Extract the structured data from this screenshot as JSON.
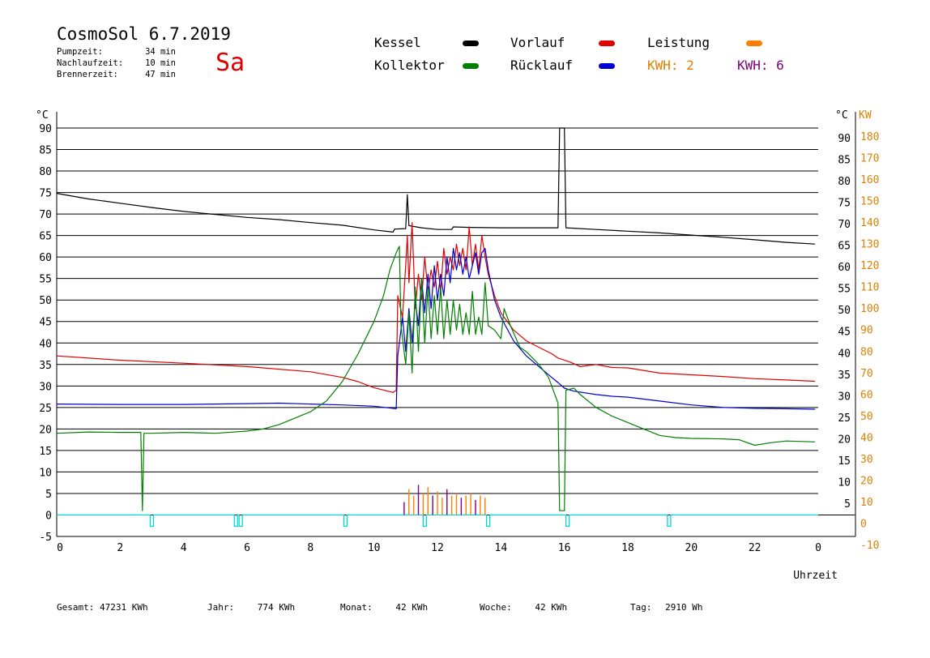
{
  "header": {
    "title": "CosmoSol 6.7.2019",
    "day": "Sa",
    "stats": [
      {
        "label": "Pumpzeit:",
        "value": "34 min"
      },
      {
        "label": "Nachlaufzeit:",
        "value": "10 min"
      },
      {
        "label": "Brennerzeit:",
        "value": "47 min"
      }
    ]
  },
  "legend": {
    "kessel": {
      "label": "Kessel",
      "color": "#000000"
    },
    "kollektor": {
      "label": "Kollektor",
      "color": "#008000"
    },
    "vorlauf": {
      "label": "Vorlauf",
      "color": "#e00000"
    },
    "ruecklauf": {
      "label": "Rücklauf",
      "color": "#0000d0"
    },
    "leistung": {
      "label": "Leistung",
      "color": "#ff8000"
    },
    "kwh_orange": {
      "label": "KWH: 2",
      "color": "#e08000"
    },
    "kwh_purple": {
      "label": "KWH: 6",
      "color": "#800080"
    }
  },
  "footer": {
    "gesamt": {
      "label": "Gesamt:",
      "value": "47231 KWh"
    },
    "jahr": {
      "label": "Jahr:",
      "value": "774 KWh"
    },
    "monat": {
      "label": "Monat:",
      "value": "42 KWh"
    },
    "woche": {
      "label": "Woche:",
      "value": "42 KWh"
    },
    "tag": {
      "label": "Tag:",
      "value": "2910 Wh"
    }
  },
  "chart_data": {
    "type": "line",
    "xlabel": "Uhrzeit",
    "ylabel_left": "°C",
    "ylabel_right_temp": "°C",
    "ylabel_right_power": "KW",
    "xlim": [
      0,
      24
    ],
    "ylim": [
      -5,
      90
    ],
    "y2lim": [
      -10,
      180
    ],
    "x_ticks": [
      "0",
      "2",
      "4",
      "6",
      "8",
      "10",
      "12",
      "14",
      "16",
      "18",
      "20",
      "22",
      "0"
    ],
    "y_ticks_left": [
      90,
      85,
      80,
      75,
      70,
      65,
      60,
      55,
      50,
      45,
      40,
      35,
      30,
      25,
      20,
      15,
      10,
      5,
      0,
      -5
    ],
    "y_ticks_right": [
      90,
      85,
      80,
      75,
      70,
      65,
      60,
      55,
      50,
      45,
      40,
      35,
      30,
      25,
      20,
      15,
      10,
      5
    ],
    "y2_ticks": [
      180,
      170,
      160,
      150,
      140,
      130,
      120,
      110,
      100,
      90,
      80,
      70,
      60,
      50,
      40,
      30,
      20,
      10,
      0,
      -10
    ],
    "grid": true,
    "series": [
      {
        "name": "Kessel",
        "color": "#000000",
        "points": [
          [
            0,
            74.8
          ],
          [
            1,
            73.5
          ],
          [
            2,
            72.5
          ],
          [
            3,
            71.5
          ],
          [
            4,
            70.6
          ],
          [
            5,
            69.9
          ],
          [
            6,
            69.2
          ],
          [
            7,
            68.7
          ],
          [
            8,
            68.0
          ],
          [
            9,
            67.4
          ],
          [
            10,
            66.3
          ],
          [
            10.6,
            65.8
          ],
          [
            10.65,
            66.5
          ],
          [
            11.0,
            66.6
          ],
          [
            11.05,
            74.5
          ],
          [
            11.1,
            67.3
          ],
          [
            11.5,
            66.8
          ],
          [
            12.0,
            66.4
          ],
          [
            12.45,
            66.4
          ],
          [
            12.5,
            67.0
          ],
          [
            13.0,
            66.9
          ],
          [
            14.0,
            66.8
          ],
          [
            15.0,
            66.8
          ],
          [
            15.8,
            66.8
          ],
          [
            15.85,
            90.0
          ],
          [
            16.0,
            90.0
          ],
          [
            16.05,
            66.8
          ],
          [
            17,
            66.4
          ],
          [
            18,
            66.0
          ],
          [
            19,
            65.6
          ],
          [
            20,
            65.1
          ],
          [
            21,
            64.6
          ],
          [
            22,
            64.0
          ],
          [
            23,
            63.4
          ],
          [
            23.9,
            63.0
          ]
        ]
      },
      {
        "name": "Vorlauf",
        "color": "#e00000",
        "points": [
          [
            0,
            37.0
          ],
          [
            2,
            36.0
          ],
          [
            4,
            35.3
          ],
          [
            6,
            34.5
          ],
          [
            8,
            33.3
          ],
          [
            9,
            32.0
          ],
          [
            9.5,
            31.0
          ],
          [
            10,
            29.6
          ],
          [
            10.6,
            28.5
          ],
          [
            10.7,
            29.0
          ],
          [
            10.75,
            51.0
          ],
          [
            10.9,
            46.0
          ],
          [
            11.0,
            58.0
          ],
          [
            11.05,
            65.0
          ],
          [
            11.1,
            54.0
          ],
          [
            11.2,
            68.0
          ],
          [
            11.3,
            48.0
          ],
          [
            11.4,
            56.0
          ],
          [
            11.5,
            50.0
          ],
          [
            11.6,
            60.0
          ],
          [
            11.7,
            52.0
          ],
          [
            11.8,
            57.0
          ],
          [
            11.9,
            53.0
          ],
          [
            12.0,
            59.0
          ],
          [
            12.1,
            52.0
          ],
          [
            12.2,
            62.0
          ],
          [
            12.3,
            56.0
          ],
          [
            12.4,
            60.0
          ],
          [
            12.5,
            57.0
          ],
          [
            12.6,
            63.0
          ],
          [
            12.7,
            58.0
          ],
          [
            12.8,
            62.0
          ],
          [
            12.9,
            57.0
          ],
          [
            13.0,
            67.0
          ],
          [
            13.1,
            58.0
          ],
          [
            13.2,
            63.0
          ],
          [
            13.3,
            57.0
          ],
          [
            13.4,
            65.0
          ],
          [
            13.5,
            60.0
          ],
          [
            13.6,
            56.0
          ],
          [
            13.8,
            51.0
          ],
          [
            14.0,
            47.0
          ],
          [
            14.4,
            43.0
          ],
          [
            14.8,
            40.5
          ],
          [
            15.2,
            39.0
          ],
          [
            15.6,
            37.5
          ],
          [
            15.8,
            36.5
          ],
          [
            16.2,
            35.5
          ],
          [
            16.5,
            34.5
          ],
          [
            17,
            35.0
          ],
          [
            17.5,
            34.3
          ],
          [
            18,
            34.2
          ],
          [
            19,
            33.0
          ],
          [
            20,
            32.6
          ],
          [
            21,
            32.2
          ],
          [
            22,
            31.7
          ],
          [
            23,
            31.4
          ],
          [
            23.9,
            31.1
          ]
        ]
      },
      {
        "name": "Rücklauf",
        "color": "#0000d0",
        "points": [
          [
            0,
            25.8
          ],
          [
            2,
            25.7
          ],
          [
            4,
            25.7
          ],
          [
            6,
            25.9
          ],
          [
            7,
            26.0
          ],
          [
            8,
            25.8
          ],
          [
            9,
            25.6
          ],
          [
            10,
            25.3
          ],
          [
            10.7,
            24.7
          ],
          [
            10.75,
            37.0
          ],
          [
            10.9,
            46.0
          ],
          [
            11.0,
            38.0
          ],
          [
            11.1,
            48.0
          ],
          [
            11.2,
            40.0
          ],
          [
            11.3,
            50.0
          ],
          [
            11.4,
            44.0
          ],
          [
            11.5,
            55.0
          ],
          [
            11.6,
            47.0
          ],
          [
            11.7,
            56.0
          ],
          [
            11.8,
            48.0
          ],
          [
            11.9,
            58.0
          ],
          [
            12.0,
            50.0
          ],
          [
            12.1,
            56.0
          ],
          [
            12.2,
            51.0
          ],
          [
            12.3,
            60.0
          ],
          [
            12.4,
            54.0
          ],
          [
            12.5,
            62.0
          ],
          [
            12.6,
            57.0
          ],
          [
            12.7,
            61.0
          ],
          [
            12.8,
            56.0
          ],
          [
            12.9,
            60.0
          ],
          [
            13.0,
            55.0
          ],
          [
            13.1,
            58.0
          ],
          [
            13.2,
            61.0
          ],
          [
            13.3,
            56.0
          ],
          [
            13.4,
            61.0
          ],
          [
            13.5,
            62.0
          ],
          [
            13.6,
            57.0
          ],
          [
            13.8,
            50.0
          ],
          [
            14.0,
            46.0
          ],
          [
            14.4,
            40.5
          ],
          [
            14.8,
            37.0
          ],
          [
            15.2,
            34.5
          ],
          [
            15.6,
            32.0
          ],
          [
            15.8,
            30.8
          ],
          [
            16.0,
            29.5
          ],
          [
            16.3,
            28.8
          ],
          [
            17,
            28.0
          ],
          [
            17.5,
            27.6
          ],
          [
            18,
            27.4
          ],
          [
            19,
            26.5
          ],
          [
            20,
            25.6
          ],
          [
            21,
            25.0
          ],
          [
            22,
            24.8
          ],
          [
            23,
            24.7
          ],
          [
            23.9,
            24.6
          ]
        ]
      },
      {
        "name": "Kollektor",
        "color": "#008000",
        "points": [
          [
            0,
            19.0
          ],
          [
            1,
            19.3
          ],
          [
            2,
            19.2
          ],
          [
            2.65,
            19.2
          ],
          [
            2.7,
            1.0
          ],
          [
            2.75,
            19.0
          ],
          [
            3,
            19.0
          ],
          [
            4,
            19.2
          ],
          [
            5,
            19.0
          ],
          [
            6,
            19.5
          ],
          [
            6.5,
            20.0
          ],
          [
            7,
            21.0
          ],
          [
            7.5,
            22.5
          ],
          [
            8,
            24.0
          ],
          [
            8.5,
            26.5
          ],
          [
            9,
            31.0
          ],
          [
            9.5,
            37.5
          ],
          [
            10,
            45.0
          ],
          [
            10.3,
            51.0
          ],
          [
            10.5,
            57.0
          ],
          [
            10.7,
            61.0
          ],
          [
            10.8,
            62.5
          ],
          [
            10.85,
            44.0
          ],
          [
            11.0,
            35.0
          ],
          [
            11.1,
            47.0
          ],
          [
            11.2,
            33.0
          ],
          [
            11.3,
            53.0
          ],
          [
            11.4,
            38.0
          ],
          [
            11.5,
            55.0
          ],
          [
            11.6,
            40.0
          ],
          [
            11.7,
            53.0
          ],
          [
            11.8,
            41.0
          ],
          [
            11.9,
            51.0
          ],
          [
            12.0,
            42.0
          ],
          [
            12.1,
            53.0
          ],
          [
            12.2,
            41.0
          ],
          [
            12.3,
            50.0
          ],
          [
            12.4,
            42.0
          ],
          [
            12.5,
            50.0
          ],
          [
            12.6,
            43.0
          ],
          [
            12.7,
            49.0
          ],
          [
            12.8,
            42.0
          ],
          [
            12.9,
            47.0
          ],
          [
            13.0,
            42.0
          ],
          [
            13.1,
            52.0
          ],
          [
            13.2,
            42.0
          ],
          [
            13.3,
            46.0
          ],
          [
            13.4,
            42.0
          ],
          [
            13.5,
            54.0
          ],
          [
            13.6,
            44.0
          ],
          [
            13.8,
            43.0
          ],
          [
            14.0,
            41.0
          ],
          [
            14.1,
            48.0
          ],
          [
            14.3,
            44.0
          ],
          [
            14.6,
            39.0
          ],
          [
            14.8,
            38.0
          ],
          [
            15.2,
            35.0
          ],
          [
            15.5,
            32.0
          ],
          [
            15.8,
            26.0
          ],
          [
            15.85,
            1.0
          ],
          [
            16.0,
            1.0
          ],
          [
            16.05,
            29.0
          ],
          [
            16.3,
            29.5
          ],
          [
            16.5,
            28.0
          ],
          [
            17,
            25.0
          ],
          [
            17.5,
            23.0
          ],
          [
            18,
            21.5
          ],
          [
            18.5,
            20.0
          ],
          [
            19,
            18.5
          ],
          [
            19.5,
            18.0
          ],
          [
            20,
            17.8
          ],
          [
            21,
            17.7
          ],
          [
            21.5,
            17.5
          ],
          [
            22,
            16.2
          ],
          [
            22.5,
            16.8
          ],
          [
            23,
            17.2
          ],
          [
            23.9,
            17.0
          ]
        ]
      }
    ],
    "leistung_bars_kw": [
      [
        10.95,
        6
      ],
      [
        11.1,
        12
      ],
      [
        11.25,
        9
      ],
      [
        11.4,
        14
      ],
      [
        11.55,
        10
      ],
      [
        11.7,
        13
      ],
      [
        11.85,
        9
      ],
      [
        12.0,
        11
      ],
      [
        12.15,
        8
      ],
      [
        12.3,
        12
      ],
      [
        12.45,
        9
      ],
      [
        12.6,
        10
      ],
      [
        12.75,
        8
      ],
      [
        12.9,
        9
      ],
      [
        13.05,
        10
      ],
      [
        13.2,
        7
      ],
      [
        13.35,
        9
      ],
      [
        13.5,
        8
      ]
    ],
    "pump_pulses_x": [
      3.0,
      5.65,
      5.8,
      9.1,
      11.6,
      13.6,
      16.1,
      19.3
    ]
  }
}
